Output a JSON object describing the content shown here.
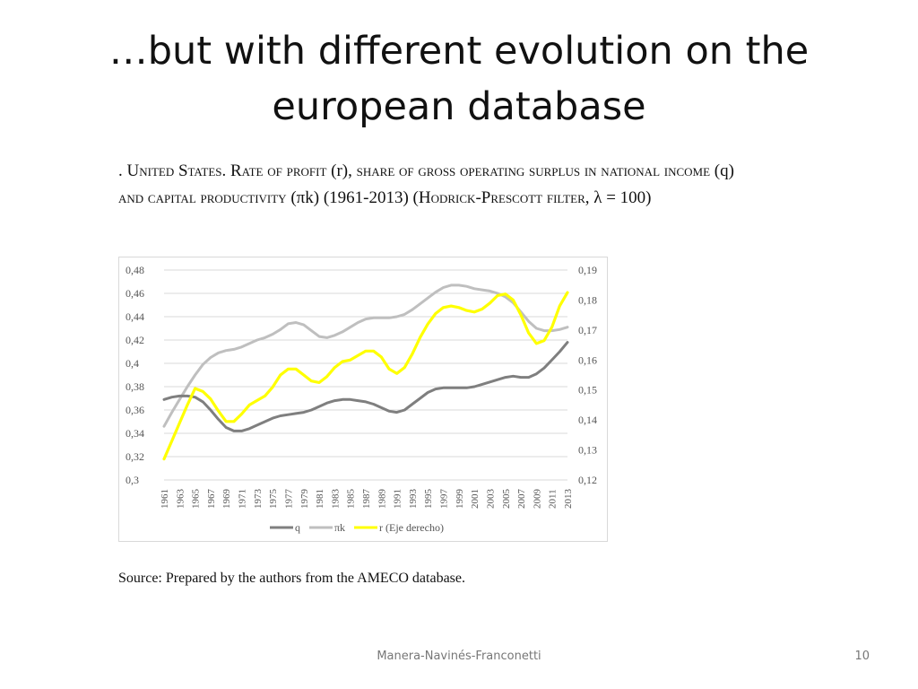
{
  "slide": {
    "title_line1": "…but with different evolution on the",
    "title_line2": "european database",
    "footer": "Manera-Navinés-Franconetti",
    "page_number": "10"
  },
  "caption": {
    "p1": ". ",
    "p2": "United States",
    "p3": ". ",
    "p4": "Rate of profit",
    "p5": " (r), ",
    "p6": "share of gross operating surplus in national income",
    "p7": " (q) ",
    "p8": "and capital productivity",
    "p9": " (πk) (1961-2013) (",
    "p10": "Hodrick-Prescott filter",
    "p11": ", λ = 100)"
  },
  "source": "Source: Prepared by the authors from the AMECO database.",
  "chart_data": {
    "type": "line",
    "x": [
      1961,
      1962,
      1963,
      1964,
      1965,
      1966,
      1967,
      1968,
      1969,
      1970,
      1971,
      1972,
      1973,
      1974,
      1975,
      1976,
      1977,
      1978,
      1979,
      1980,
      1981,
      1982,
      1983,
      1984,
      1985,
      1986,
      1987,
      1988,
      1989,
      1990,
      1991,
      1992,
      1993,
      1994,
      1995,
      1996,
      1997,
      1998,
      1999,
      2000,
      2001,
      2002,
      2003,
      2004,
      2005,
      2006,
      2007,
      2008,
      2009,
      2010,
      2011,
      2012,
      2013
    ],
    "x_tick_labels": [
      "1961",
      "1963",
      "1965",
      "1967",
      "1969",
      "1971",
      "1973",
      "1975",
      "1977",
      "1979",
      "1981",
      "1983",
      "1985",
      "1987",
      "1989",
      "1991",
      "1993",
      "1995",
      "1997",
      "1999",
      "2001",
      "2003",
      "2005",
      "2007",
      "2009",
      "2011",
      "2013"
    ],
    "y_left": {
      "min": 0.3,
      "max": 0.48,
      "ticks": [
        "0,3",
        "0,32",
        "0,34",
        "0,36",
        "0,38",
        "0,4",
        "0,42",
        "0,44",
        "0,46",
        "0,48"
      ]
    },
    "y_right": {
      "min": 0.12,
      "max": 0.19,
      "ticks": [
        "0,12",
        "0,13",
        "0,14",
        "0,15",
        "0,16",
        "0,17",
        "0,18",
        "0,19"
      ]
    },
    "grid": true,
    "legend_position": "bottom",
    "series": [
      {
        "name": "q",
        "axis": "left",
        "color": "#7f7f7f",
        "values": [
          0.369,
          0.371,
          0.372,
          0.372,
          0.371,
          0.367,
          0.36,
          0.352,
          0.345,
          0.342,
          0.342,
          0.344,
          0.347,
          0.35,
          0.353,
          0.355,
          0.356,
          0.357,
          0.358,
          0.36,
          0.363,
          0.366,
          0.368,
          0.369,
          0.369,
          0.368,
          0.367,
          0.365,
          0.362,
          0.359,
          0.358,
          0.36,
          0.365,
          0.37,
          0.375,
          0.378,
          0.379,
          0.379,
          0.379,
          0.379,
          0.38,
          0.382,
          0.384,
          0.386,
          0.388,
          0.389,
          0.388,
          0.388,
          0.391,
          0.396,
          0.403,
          0.41,
          0.418
        ]
      },
      {
        "name": "πk",
        "axis": "left",
        "color": "#bfbfbf",
        "values": [
          0.346,
          0.358,
          0.369,
          0.38,
          0.39,
          0.399,
          0.405,
          0.409,
          0.411,
          0.412,
          0.414,
          0.417,
          0.42,
          0.422,
          0.425,
          0.429,
          0.434,
          0.435,
          0.433,
          0.428,
          0.423,
          0.422,
          0.424,
          0.427,
          0.431,
          0.435,
          0.438,
          0.439,
          0.439,
          0.439,
          0.44,
          0.442,
          0.446,
          0.451,
          0.456,
          0.461,
          0.465,
          0.467,
          0.467,
          0.466,
          0.464,
          0.463,
          0.462,
          0.46,
          0.457,
          0.452,
          0.444,
          0.436,
          0.43,
          0.428,
          0.428,
          0.429,
          0.431
        ]
      },
      {
        "name": "r (Eje derecho)",
        "axis": "right",
        "color": "#ffff00",
        "values": [
          0.127,
          0.133,
          0.139,
          0.145,
          0.1505,
          0.1495,
          0.147,
          0.143,
          0.1395,
          0.1395,
          0.142,
          0.145,
          0.1465,
          0.148,
          0.151,
          0.155,
          0.157,
          0.157,
          0.155,
          0.153,
          0.1525,
          0.1545,
          0.1575,
          0.1595,
          0.16,
          0.1615,
          0.163,
          0.163,
          0.161,
          0.157,
          0.1555,
          0.1575,
          0.162,
          0.1675,
          0.172,
          0.1755,
          0.1775,
          0.178,
          0.1775,
          0.1765,
          0.176,
          0.177,
          0.179,
          0.1815,
          0.182,
          0.18,
          0.175,
          0.169,
          0.1655,
          0.1665,
          0.171,
          0.178,
          0.1825
        ]
      }
    ]
  }
}
